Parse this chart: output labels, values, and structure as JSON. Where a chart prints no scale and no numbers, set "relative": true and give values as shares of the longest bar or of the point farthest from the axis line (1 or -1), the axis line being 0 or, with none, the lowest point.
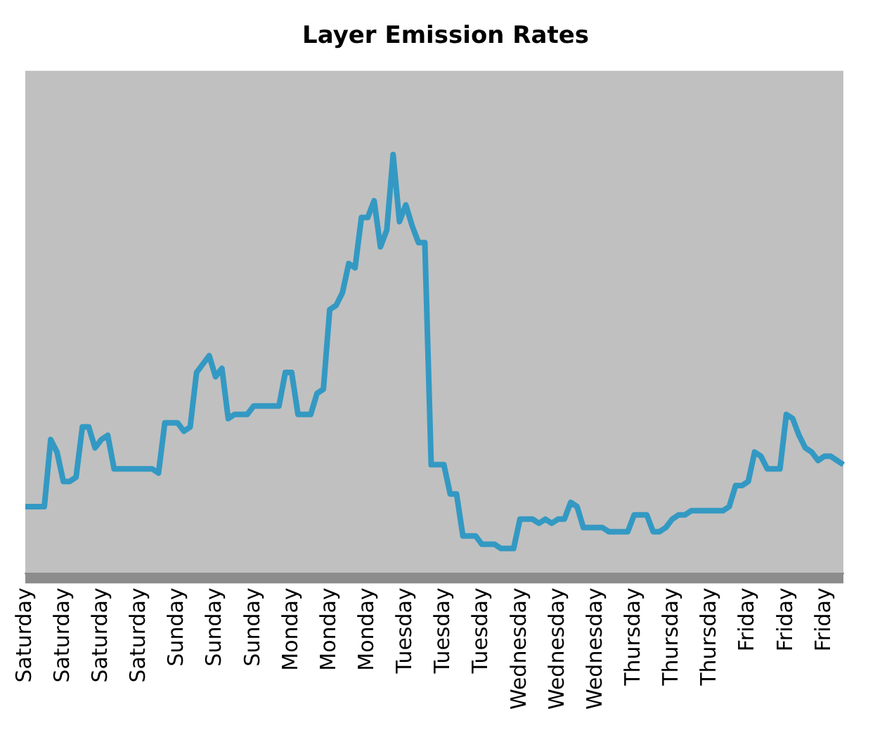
{
  "chart_data": {
    "type": "line",
    "title": "Layer Emission Rates",
    "relative": true,
    "marker": "none",
    "color": "#3399c3",
    "categories": [
      "Saturday",
      null,
      null,
      null,
      null,
      null,
      "Saturday",
      null,
      null,
      null,
      null,
      null,
      "Saturday",
      null,
      null,
      null,
      null,
      null,
      "Saturday",
      null,
      null,
      null,
      null,
      null,
      "Sunday",
      null,
      null,
      null,
      null,
      null,
      "Sunday",
      null,
      null,
      null,
      null,
      null,
      "Sunday",
      null,
      null,
      null,
      null,
      null,
      "Monday",
      null,
      null,
      null,
      null,
      null,
      "Monday",
      null,
      null,
      null,
      null,
      null,
      "Monday",
      null,
      null,
      null,
      null,
      null,
      "Tuesday",
      null,
      null,
      null,
      null,
      null,
      "Tuesday",
      null,
      null,
      null,
      null,
      null,
      "Tuesday",
      null,
      null,
      null,
      null,
      null,
      "Wednesday",
      null,
      null,
      null,
      null,
      null,
      "Wednesday",
      null,
      null,
      null,
      null,
      null,
      "Wednesday",
      null,
      null,
      null,
      null,
      null,
      "Thursday",
      null,
      null,
      null,
      null,
      null,
      "Thursday",
      null,
      null,
      null,
      null,
      null,
      "Thursday",
      null,
      null,
      null,
      null,
      null,
      "Friday",
      null,
      null,
      null,
      null,
      null,
      "Friday",
      null,
      null,
      null,
      null,
      null,
      "Friday",
      null,
      null,
      null
    ],
    "values": [
      0.16,
      0.16,
      0.16,
      0.16,
      0.32,
      0.29,
      0.22,
      0.22,
      0.23,
      0.35,
      0.35,
      0.3,
      0.32,
      0.33,
      0.25,
      0.25,
      0.25,
      0.25,
      0.25,
      0.25,
      0.25,
      0.24,
      0.36,
      0.36,
      0.36,
      0.34,
      0.35,
      0.48,
      0.5,
      0.52,
      0.47,
      0.49,
      0.37,
      0.38,
      0.38,
      0.38,
      0.4,
      0.4,
      0.4,
      0.4,
      0.4,
      0.48,
      0.48,
      0.38,
      0.38,
      0.38,
      0.43,
      0.44,
      0.63,
      0.64,
      0.67,
      0.74,
      0.73,
      0.85,
      0.85,
      0.89,
      0.78,
      0.82,
      1,
      0.84,
      0.88,
      0.83,
      0.79,
      0.79,
      0.26,
      0.26,
      0.26,
      0.19,
      0.19,
      0.09,
      0.09,
      0.09,
      0.07,
      0.07,
      0.07,
      0.06,
      0.06,
      0.06,
      0.13,
      0.13,
      0.13,
      0.12,
      0.13,
      0.12,
      0.13,
      0.13,
      0.17,
      0.16,
      0.11,
      0.11,
      0.11,
      0.11,
      0.1,
      0.1,
      0.1,
      0.1,
      0.14,
      0.14,
      0.14,
      0.1,
      0.1,
      0.11,
      0.13,
      0.14,
      0.14,
      0.15,
      0.15,
      0.15,
      0.15,
      0.15,
      0.15,
      0.16,
      0.21,
      0.21,
      0.22,
      0.29,
      0.28,
      0.25,
      0.25,
      0.25,
      0.38,
      0.37,
      0.33,
      0.3,
      0.29,
      0.27,
      0.28,
      0.28,
      0.27,
      0.26
    ]
  }
}
